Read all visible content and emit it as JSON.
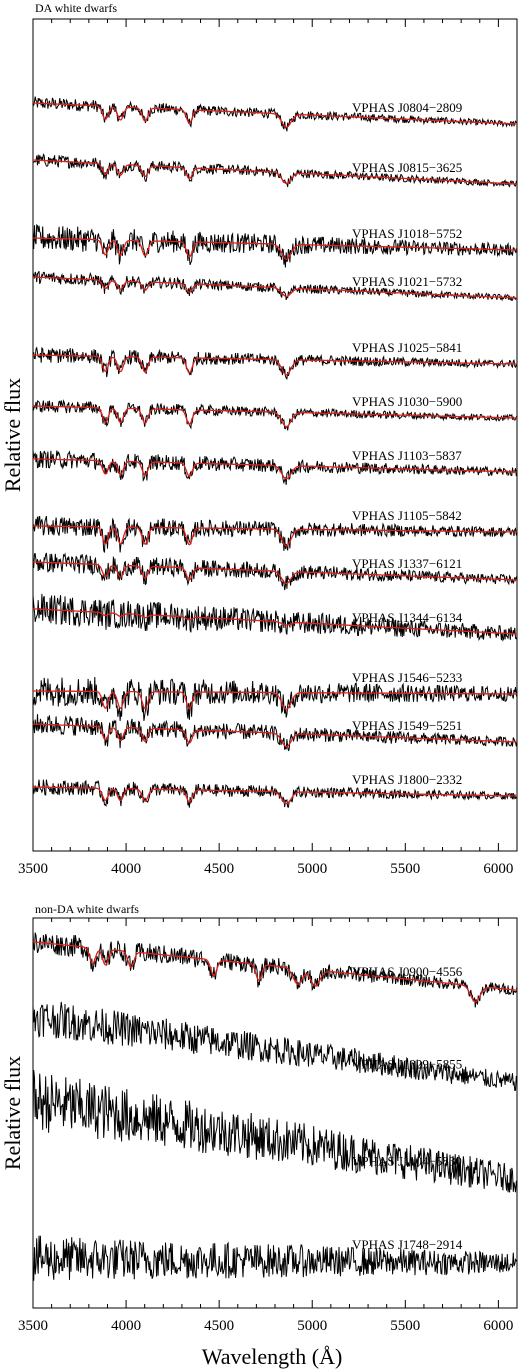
{
  "figure": {
    "xlabel": "Wavelength (Å)",
    "ylabel": "Relative flux"
  },
  "chart_data": [
    {
      "type": "line",
      "title": "DA white dwarfs",
      "xlabel": "",
      "ylabel": "Relative flux",
      "xlim": [
        3500,
        6100
      ],
      "xticks": [
        "3500",
        "4000",
        "4500",
        "5000",
        "5500",
        "6000"
      ],
      "series_colors": {
        "observed": "#000000",
        "model": "#e0201a"
      },
      "absorption_lines_A": [
        3889,
        3970,
        4102,
        4340,
        4861
      ],
      "spectra": [
        {
          "name": "VPHAS J0804−2809",
          "offset": 11.6,
          "slope": 0.35,
          "noise": 0.05,
          "depth": 0.22,
          "model": true
        },
        {
          "name": "VPHAS J0815−3625",
          "offset": 10.6,
          "slope": 0.4,
          "noise": 0.05,
          "depth": 0.18,
          "model": true
        },
        {
          "name": "VPHAS J1018−5752",
          "offset": 9.5,
          "slope": 0.2,
          "noise": 0.1,
          "depth": 0.25,
          "model": true
        },
        {
          "name": "VPHAS J1021−5732",
          "offset": 8.7,
          "slope": 0.35,
          "noise": 0.05,
          "depth": 0.14,
          "model": true
        },
        {
          "name": "VPHAS J1025−5841",
          "offset": 7.6,
          "slope": 0.15,
          "noise": 0.06,
          "depth": 0.25,
          "model": true
        },
        {
          "name": "VPHAS J1030−5900",
          "offset": 6.7,
          "slope": 0.2,
          "noise": 0.05,
          "depth": 0.24,
          "model": true
        },
        {
          "name": "VPHAS J1103−5837",
          "offset": 5.8,
          "slope": 0.22,
          "noise": 0.07,
          "depth": 0.22,
          "model": true
        },
        {
          "name": "VPHAS J1105−5842",
          "offset": 4.8,
          "slope": 0.1,
          "noise": 0.08,
          "depth": 0.28,
          "model": true
        },
        {
          "name": "VPHAS J1337−6121",
          "offset": 4.0,
          "slope": 0.3,
          "noise": 0.08,
          "depth": 0.2,
          "model": true
        },
        {
          "name": "VPHAS J1344−6134",
          "offset": 3.1,
          "slope": 0.42,
          "noise": 0.12,
          "depth": 0.05,
          "model": true
        },
        {
          "name": "VPHAS J1546−5233",
          "offset": 2.1,
          "slope": 0.05,
          "noise": 0.12,
          "depth": 0.28,
          "model": true
        },
        {
          "name": "VPHAS J1549−5251",
          "offset": 1.3,
          "slope": 0.3,
          "noise": 0.08,
          "depth": 0.22,
          "model": true
        },
        {
          "name": "VPHAS J1800−2332",
          "offset": 0.4,
          "slope": 0.15,
          "noise": 0.06,
          "depth": 0.2,
          "model": true
        }
      ]
    },
    {
      "type": "line",
      "title": "non-DA white dwarfs",
      "xlabel": "Wavelength (Å)",
      "ylabel": "Relative flux",
      "xlim": [
        3500,
        6100
      ],
      "xticks": [
        "3500",
        "4000",
        "4500",
        "5000",
        "5500",
        "6000"
      ],
      "absorption_lines_A": [
        3820,
        3889,
        4026,
        4471,
        4713,
        4922,
        5016,
        5876
      ],
      "spectra": [
        {
          "name": "VPHAS J0900−4556",
          "offset": 3.35,
          "slope": 0.55,
          "noise": 0.06,
          "depth": 0.18,
          "model": true
        },
        {
          "name": "VPHAS J1029−5855",
          "offset": 2.3,
          "slope": 0.75,
          "noise": 0.1,
          "depth": 0.0,
          "model": false
        },
        {
          "name": "VPHAS J1104−5830",
          "offset": 1.2,
          "slope": 0.9,
          "noise": 0.16,
          "depth": 0.0,
          "model": false
        },
        {
          "name": "VPHAS J1748−2914",
          "offset": 0.25,
          "slope": 0.05,
          "noise": 0.12,
          "depth": 0.0,
          "model": false
        }
      ]
    }
  ]
}
